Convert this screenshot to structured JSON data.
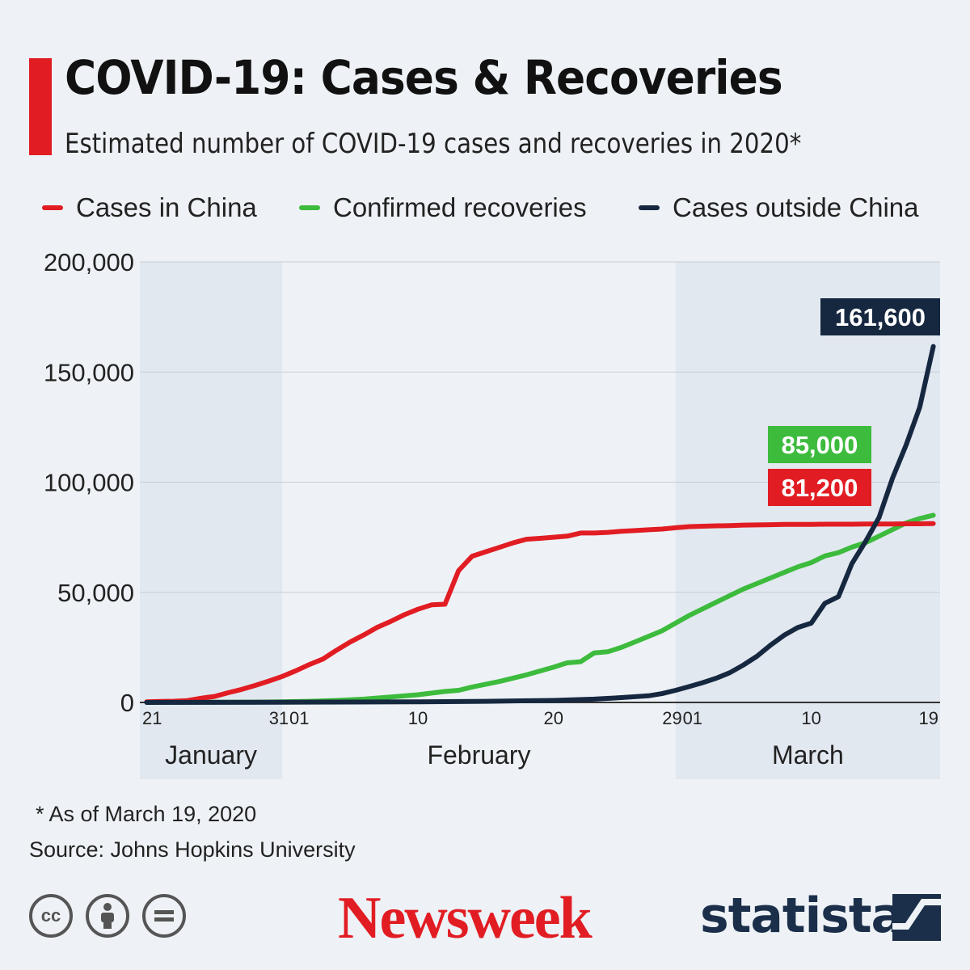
{
  "title": "COVID-19: Cases & Recoveries",
  "subtitle": "Estimated number of COVID-19 cases and recoveries in 2020*",
  "footnote": "* As of March 19, 2020",
  "source": "Source: Johns Hopkins University",
  "branding": {
    "newsweek": "Newsweek",
    "statista": "statista"
  },
  "license_icons": [
    "cc-icon",
    "attribution-icon",
    "no-derivatives-icon"
  ],
  "colors": {
    "background": "#eef2f6",
    "month_band": "#e2e8f0",
    "grid": "#c8ced6",
    "title_accent": "#e11d23",
    "china": "#e11d23",
    "recoveries": "#3dbb3d",
    "outside": "#162840"
  },
  "chart_data": {
    "type": "line",
    "title": "COVID-19: Cases & Recoveries",
    "xlabel": "",
    "ylabel": "",
    "ylim": [
      0,
      200000
    ],
    "y_ticks": [
      0,
      50000,
      100000,
      150000,
      200000
    ],
    "y_tick_labels": [
      "0",
      "50,000",
      "100,000",
      "150,000",
      "200,000"
    ],
    "x_tick_labels": [
      {
        "label": "21",
        "day": 0
      },
      {
        "label": "31",
        "day": 10
      },
      {
        "label": "01",
        "day": 11
      },
      {
        "label": "10",
        "day": 20
      },
      {
        "label": "20",
        "day": 30
      },
      {
        "label": "29",
        "day": 39
      },
      {
        "label": "01",
        "day": 40
      },
      {
        "label": "10",
        "day": 49
      },
      {
        "label": "19",
        "day": 58
      }
    ],
    "months": [
      {
        "label": "January",
        "start_day": 0,
        "end_day": 10,
        "shaded": true
      },
      {
        "label": "February",
        "start_day": 10,
        "end_day": 39,
        "shaded": false
      },
      {
        "label": "March",
        "start_day": 39,
        "end_day": 58,
        "shaded": true
      }
    ],
    "x_range_days": [
      -0.5,
      58.5
    ],
    "series": [
      {
        "name": "Cases in China",
        "color_key": "china",
        "end_label": "81,200",
        "points": [
          [
            0,
            300
          ],
          [
            1,
            450
          ],
          [
            2,
            550
          ],
          [
            3,
            850
          ],
          [
            4,
            1900
          ],
          [
            5,
            2700
          ],
          [
            6,
            4400
          ],
          [
            7,
            5900
          ],
          [
            8,
            7700
          ],
          [
            9,
            9700
          ],
          [
            10,
            11800
          ],
          [
            11,
            14400
          ],
          [
            12,
            17200
          ],
          [
            13,
            19700
          ],
          [
            14,
            23700
          ],
          [
            15,
            27400
          ],
          [
            16,
            30600
          ],
          [
            17,
            34100
          ],
          [
            18,
            36800
          ],
          [
            19,
            39800
          ],
          [
            20,
            42300
          ],
          [
            21,
            44300
          ],
          [
            22,
            44600
          ],
          [
            23,
            59800
          ],
          [
            24,
            66400
          ],
          [
            25,
            68400
          ],
          [
            26,
            70400
          ],
          [
            27,
            72400
          ],
          [
            28,
            74100
          ],
          [
            29,
            74500
          ],
          [
            30,
            75000
          ],
          [
            31,
            75500
          ],
          [
            32,
            76900
          ],
          [
            33,
            76900
          ],
          [
            34,
            77200
          ],
          [
            35,
            77700
          ],
          [
            36,
            78000
          ],
          [
            37,
            78400
          ],
          [
            38,
            78700
          ],
          [
            39,
            79300
          ],
          [
            40,
            79800
          ],
          [
            41,
            80000
          ],
          [
            42,
            80200
          ],
          [
            43,
            80300
          ],
          [
            44,
            80500
          ],
          [
            45,
            80600
          ],
          [
            46,
            80700
          ],
          [
            47,
            80800
          ],
          [
            48,
            80800
          ],
          [
            49,
            80800
          ],
          [
            50,
            80900
          ],
          [
            51,
            80900
          ],
          [
            52,
            80900
          ],
          [
            53,
            81000
          ],
          [
            54,
            81000
          ],
          [
            55,
            81000
          ],
          [
            56,
            81100
          ],
          [
            57,
            81100
          ],
          [
            58,
            81200
          ]
        ]
      },
      {
        "name": "Confirmed recoveries",
        "color_key": "recoveries",
        "end_label": "85,000",
        "points": [
          [
            0,
            30
          ],
          [
            4,
            60
          ],
          [
            8,
            150
          ],
          [
            10,
            250
          ],
          [
            12,
            500
          ],
          [
            14,
            900
          ],
          [
            16,
            1500
          ],
          [
            18,
            2500
          ],
          [
            20,
            3500
          ],
          [
            22,
            5000
          ],
          [
            23,
            5500
          ],
          [
            24,
            7000
          ],
          [
            26,
            9500
          ],
          [
            28,
            12500
          ],
          [
            30,
            16000
          ],
          [
            31,
            18000
          ],
          [
            32,
            18500
          ],
          [
            33,
            22500
          ],
          [
            34,
            23000
          ],
          [
            35,
            25000
          ],
          [
            36,
            27500
          ],
          [
            37,
            30000
          ],
          [
            38,
            32500
          ],
          [
            39,
            36000
          ],
          [
            40,
            39500
          ],
          [
            41,
            42500
          ],
          [
            42,
            45500
          ],
          [
            43,
            48500
          ],
          [
            44,
            51500
          ],
          [
            45,
            54000
          ],
          [
            46,
            56500
          ],
          [
            47,
            59000
          ],
          [
            48,
            61500
          ],
          [
            49,
            63500
          ],
          [
            50,
            66500
          ],
          [
            51,
            68000
          ],
          [
            52,
            70500
          ],
          [
            53,
            72500
          ],
          [
            54,
            75500
          ],
          [
            55,
            78500
          ],
          [
            56,
            81500
          ],
          [
            57,
            83500
          ],
          [
            58,
            85000
          ]
        ]
      },
      {
        "name": "Cases outside China",
        "color_key": "outside",
        "end_label": "161,600",
        "points": [
          [
            0,
            10
          ],
          [
            10,
            100
          ],
          [
            15,
            200
          ],
          [
            20,
            300
          ],
          [
            25,
            500
          ],
          [
            30,
            900
          ],
          [
            33,
            1500
          ],
          [
            35,
            2200
          ],
          [
            37,
            3000
          ],
          [
            38,
            4000
          ],
          [
            39,
            5500
          ],
          [
            40,
            7200
          ],
          [
            41,
            9000
          ],
          [
            42,
            11000
          ],
          [
            43,
            13500
          ],
          [
            44,
            17000
          ],
          [
            45,
            21000
          ],
          [
            46,
            26000
          ],
          [
            47,
            30500
          ],
          [
            48,
            34000
          ],
          [
            49,
            36000
          ],
          [
            50,
            45000
          ],
          [
            51,
            48000
          ],
          [
            52,
            63000
          ],
          [
            53,
            73000
          ],
          [
            54,
            84000
          ],
          [
            55,
            102000
          ],
          [
            56,
            117000
          ],
          [
            57,
            134000
          ],
          [
            58,
            161600
          ]
        ]
      }
    ]
  }
}
